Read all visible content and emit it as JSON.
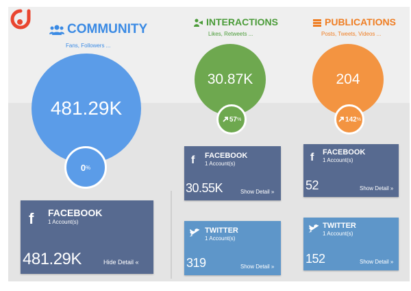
{
  "community": {
    "title": "COMMUNITY",
    "subtitle": "Fans, Followers ...",
    "total": "481.29K",
    "change": "0",
    "change_unit": "%",
    "color": "#5b9ce8"
  },
  "interactions": {
    "title": "INTERACTIONS",
    "subtitle": "Likes, Retweets ...",
    "total": "30.87K",
    "change": "57",
    "change_unit": "%",
    "color": "#6ea84f"
  },
  "publications": {
    "title": "PUBLICATIONS",
    "subtitle": "Posts, Tweets, Videos ...",
    "total": "204",
    "change": "142",
    "change_unit": "%",
    "color": "#f39441"
  },
  "cards": {
    "community_facebook": {
      "name": "FACEBOOK",
      "accounts": "1 Account(s)",
      "value": "481.29K",
      "detail": "Hide Detail «"
    },
    "interactions_facebook": {
      "name": "FACEBOOK",
      "accounts": "1 Account(s)",
      "value": "30.55K",
      "detail": "Show Detail »"
    },
    "interactions_twitter": {
      "name": "TWITTER",
      "accounts": "1 Account(s)",
      "value": "319",
      "detail": "Show Detail »"
    },
    "publications_facebook": {
      "name": "FACEBOOK",
      "accounts": "1 Account(s)",
      "value": "52",
      "detail": "Show Detail »"
    },
    "publications_twitter": {
      "name": "TWITTER",
      "accounts": "1 Account(s)",
      "value": "152",
      "detail": "Show Detail »"
    }
  },
  "colors": {
    "facebook_card": "#576a90",
    "twitter_card": "#5e96c9",
    "logo": "#e9452f"
  },
  "icons": {
    "community": "users-icon",
    "interactions": "handshake-icon",
    "publications": "stack-icon",
    "facebook": "facebook-f-icon",
    "twitter": "twitter-bird-icon",
    "trend": "arrow-up-right-icon"
  }
}
